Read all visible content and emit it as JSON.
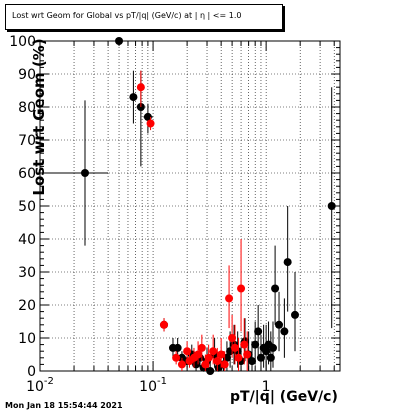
{
  "title": "Lost wrt Geom for Global vs pT/|q| (GeV/c) at | η | <= 1.0",
  "timestamp": "Mon Jan 18 15:54:44 2021",
  "chart_data": {
    "type": "scatter",
    "xlabel": "pT/|q| (GeV/c)",
    "ylabel": "Lost wrt Geom (%)",
    "xscale": "log",
    "xlim": [
      0.01,
      4.5
    ],
    "ylim": [
      0,
      100
    ],
    "grid": true,
    "y_ticks": [
      0,
      10,
      20,
      30,
      40,
      50,
      60,
      70,
      80,
      90,
      100
    ],
    "x_ticks": [
      {
        "v": 0.01,
        "label": "10",
        "exp": "-2"
      },
      {
        "v": 0.1,
        "label": "10",
        "exp": "-1"
      },
      {
        "v": 1,
        "label": "1",
        "exp": ""
      }
    ],
    "series": [
      {
        "color": "#000000",
        "points": [
          {
            "x": 0.025,
            "y": 60,
            "ylo": 38,
            "yhi": 82,
            "xlo": 0.01,
            "xhi": 0.04
          },
          {
            "x": 0.05,
            "y": 100,
            "ylo": 100,
            "yhi": 100,
            "xlo": 0.045,
            "xhi": 0.056
          },
          {
            "x": 0.067,
            "y": 83,
            "ylo": 75,
            "yhi": 91
          },
          {
            "x": 0.078,
            "y": 80,
            "ylo": 62,
            "yhi": 91
          },
          {
            "x": 0.09,
            "y": 77,
            "ylo": 72,
            "yhi": 81,
            "xlo": 0.082,
            "xhi": 0.1
          },
          {
            "x": 0.125,
            "y": 14,
            "ylo": 12,
            "yhi": 16,
            "xlo": 0.115,
            "xhi": 0.135
          },
          {
            "x": 0.15,
            "y": 7,
            "ylo": 4,
            "yhi": 10
          },
          {
            "x": 0.165,
            "y": 7,
            "ylo": 4,
            "yhi": 10
          },
          {
            "x": 0.18,
            "y": 4,
            "ylo": 2,
            "yhi": 6
          },
          {
            "x": 0.2,
            "y": 3,
            "ylo": 1,
            "yhi": 6
          },
          {
            "x": 0.22,
            "y": 5,
            "ylo": 2,
            "yhi": 8
          },
          {
            "x": 0.24,
            "y": 2,
            "ylo": 0,
            "yhi": 5
          },
          {
            "x": 0.26,
            "y": 4,
            "ylo": 1,
            "yhi": 8
          },
          {
            "x": 0.28,
            "y": 1,
            "ylo": 0,
            "yhi": 4
          },
          {
            "x": 0.3,
            "y": 3,
            "ylo": 0,
            "yhi": 7
          },
          {
            "x": 0.32,
            "y": 0,
            "ylo": 0,
            "yhi": 3
          },
          {
            "x": 0.35,
            "y": 5,
            "ylo": 1,
            "yhi": 10
          },
          {
            "x": 0.38,
            "y": 1,
            "ylo": 0,
            "yhi": 4
          },
          {
            "x": 0.42,
            "y": 2,
            "ylo": 0,
            "yhi": 6
          },
          {
            "x": 0.45,
            "y": 4,
            "ylo": 0,
            "yhi": 9
          },
          {
            "x": 0.48,
            "y": 6,
            "ylo": 1,
            "yhi": 12
          },
          {
            "x": 0.52,
            "y": 8,
            "ylo": 2,
            "yhi": 14
          },
          {
            "x": 0.56,
            "y": 6,
            "ylo": 1,
            "yhi": 12
          },
          {
            "x": 0.6,
            "y": 3,
            "ylo": 0,
            "yhi": 9
          },
          {
            "x": 0.65,
            "y": 9,
            "ylo": 3,
            "yhi": 16
          },
          {
            "x": 0.7,
            "y": 5,
            "ylo": 0,
            "yhi": 12
          },
          {
            "x": 0.75,
            "y": 3,
            "ylo": 0,
            "yhi": 9
          },
          {
            "x": 0.8,
            "y": 8,
            "ylo": 2,
            "yhi": 15
          },
          {
            "x": 0.85,
            "y": 12,
            "ylo": 4,
            "yhi": 20
          },
          {
            "x": 0.9,
            "y": 4,
            "ylo": 0,
            "yhi": 11
          },
          {
            "x": 0.95,
            "y": 7,
            "ylo": 1,
            "yhi": 14
          },
          {
            "x": 1.0,
            "y": 6,
            "ylo": 0,
            "yhi": 14
          },
          {
            "x": 1.05,
            "y": 8,
            "ylo": 2,
            "yhi": 15
          },
          {
            "x": 1.1,
            "y": 4,
            "ylo": 0,
            "yhi": 12
          },
          {
            "x": 1.15,
            "y": 7,
            "ylo": 1,
            "yhi": 15
          },
          {
            "x": 1.2,
            "y": 25,
            "ylo": 14,
            "yhi": 38
          },
          {
            "x": 1.3,
            "y": 14,
            "ylo": 6,
            "yhi": 24
          },
          {
            "x": 1.45,
            "y": 12,
            "ylo": 4,
            "yhi": 22
          },
          {
            "x": 1.55,
            "y": 33,
            "ylo": 18,
            "yhi": 50
          },
          {
            "x": 1.8,
            "y": 17,
            "ylo": 6,
            "yhi": 30
          },
          {
            "x": 3.8,
            "y": 50,
            "ylo": 13,
            "yhi": 86
          }
        ]
      },
      {
        "color": "#ff0000",
        "points": [
          {
            "x": 0.078,
            "y": 86,
            "ylo": 80,
            "yhi": 91
          },
          {
            "x": 0.095,
            "y": 75,
            "ylo": 73,
            "yhi": 77
          },
          {
            "x": 0.125,
            "y": 14,
            "ylo": 12,
            "yhi": 16
          },
          {
            "x": 0.16,
            "y": 4,
            "ylo": 2,
            "yhi": 6
          },
          {
            "x": 0.18,
            "y": 2,
            "ylo": 0,
            "yhi": 4
          },
          {
            "x": 0.2,
            "y": 6,
            "ylo": 3,
            "yhi": 9
          },
          {
            "x": 0.21,
            "y": 3,
            "ylo": 1,
            "yhi": 6
          },
          {
            "x": 0.23,
            "y": 4,
            "ylo": 1,
            "yhi": 7
          },
          {
            "x": 0.25,
            "y": 5,
            "ylo": 2,
            "yhi": 9
          },
          {
            "x": 0.27,
            "y": 7,
            "ylo": 3,
            "yhi": 11
          },
          {
            "x": 0.29,
            "y": 2,
            "ylo": 0,
            "yhi": 5
          },
          {
            "x": 0.31,
            "y": 4,
            "ylo": 1,
            "yhi": 8
          },
          {
            "x": 0.34,
            "y": 6,
            "ylo": 2,
            "yhi": 11
          },
          {
            "x": 0.37,
            "y": 3,
            "ylo": 0,
            "yhi": 7
          },
          {
            "x": 0.4,
            "y": 5,
            "ylo": 1,
            "yhi": 10
          },
          {
            "x": 0.43,
            "y": 2,
            "ylo": 0,
            "yhi": 6
          },
          {
            "x": 0.47,
            "y": 22,
            "ylo": 13,
            "yhi": 32
          },
          {
            "x": 0.5,
            "y": 10,
            "ylo": 4,
            "yhi": 17
          },
          {
            "x": 0.53,
            "y": 7,
            "ylo": 2,
            "yhi": 14
          },
          {
            "x": 0.57,
            "y": 4,
            "ylo": 0,
            "yhi": 10
          },
          {
            "x": 0.6,
            "y": 25,
            "ylo": 12,
            "yhi": 40
          },
          {
            "x": 0.64,
            "y": 8,
            "ylo": 2,
            "yhi": 16
          },
          {
            "x": 0.68,
            "y": 5,
            "ylo": 0,
            "yhi": 12
          }
        ]
      }
    ]
  }
}
